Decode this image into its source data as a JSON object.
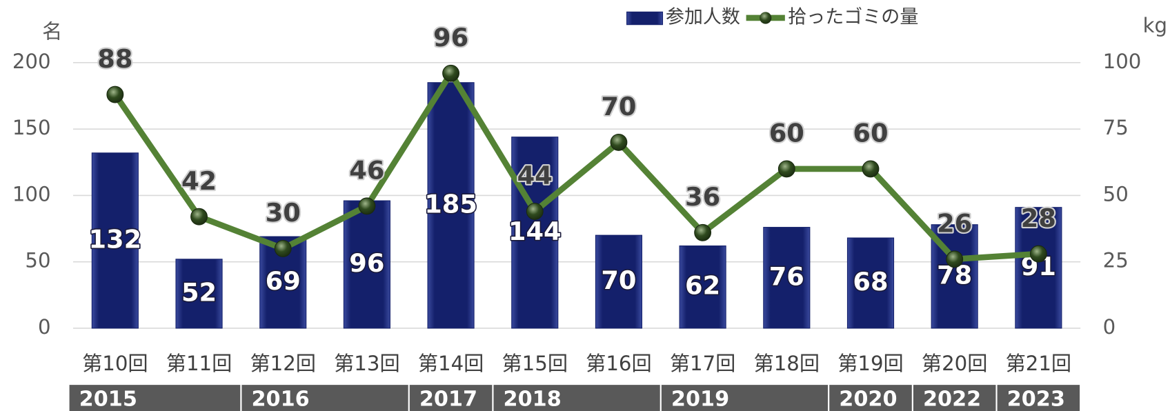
{
  "chart_data": {
    "type": "bar_line",
    "legend_position": "top",
    "y_unit": "名",
    "y2_unit": "kg",
    "categories": [
      "第10回",
      "第11回",
      "第12回",
      "第13回",
      "第14回",
      "第15回",
      "第16回",
      "第17回",
      "第18回",
      "第19回",
      "第20回",
      "第21回"
    ],
    "year_row": [
      "2015",
      null,
      "2016",
      null,
      "2017",
      "2018",
      null,
      "2019",
      null,
      "2020",
      "2022",
      "2023"
    ],
    "series": [
      {
        "name": "参加人数",
        "type": "bar",
        "color": "#14206b",
        "values": [
          132,
          52,
          69,
          96,
          185,
          144,
          70,
          62,
          76,
          68,
          78,
          91
        ]
      },
      {
        "name": "拾ったゴミの量",
        "type": "line",
        "axis": "y2",
        "color": "#548235",
        "values": [
          88,
          42,
          30,
          46,
          96,
          44,
          70,
          36,
          60,
          60,
          26,
          28
        ]
      }
    ],
    "ylim": [
      0,
      200
    ],
    "yticks": [
      0,
      50,
      100,
      150,
      200
    ],
    "y2lim": [
      0,
      100
    ],
    "y2ticks": [
      0,
      25,
      50,
      75,
      100
    ],
    "grid": true
  }
}
